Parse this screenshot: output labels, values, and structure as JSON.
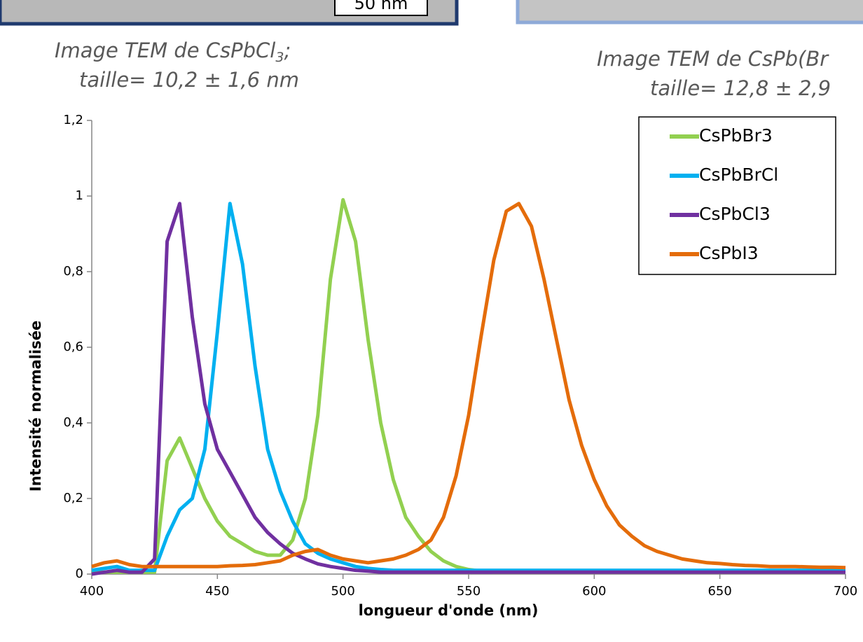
{
  "captions": [
    {
      "line1": "Image TEM de CsPbCl",
      "sub": "3",
      "after": ";",
      "line2": "taille= 10,2 ± 1,6 nm"
    },
    {
      "line1": "Image TEM de CsPb(Br",
      "line2": "taille= 12,8 ± 2,9"
    }
  ],
  "scale_bar": "50 nm",
  "chart_data": {
    "type": "line",
    "xlabel": "longueur d'onde (nm)",
    "ylabel": "Intensité normalisée",
    "x": [
      400,
      405,
      410,
      415,
      420,
      425,
      430,
      435,
      440,
      445,
      450,
      455,
      460,
      465,
      470,
      475,
      480,
      485,
      490,
      495,
      500,
      505,
      510,
      515,
      520,
      525,
      530,
      535,
      540,
      545,
      550,
      555,
      560,
      565,
      570,
      575,
      580,
      585,
      590,
      595,
      600,
      605,
      610,
      615,
      620,
      625,
      630,
      635,
      640,
      645,
      650,
      655,
      660,
      665,
      670,
      675,
      680,
      685,
      690,
      695,
      700
    ],
    "series": [
      {
        "name": "CsPbBr3",
        "color": "#92d050",
        "values": [
          0.005,
          0.005,
          0.005,
          0.005,
          0.005,
          0.005,
          0.3,
          0.36,
          0.28,
          0.2,
          0.14,
          0.1,
          0.08,
          0.06,
          0.05,
          0.05,
          0.09,
          0.2,
          0.42,
          0.78,
          0.99,
          0.88,
          0.62,
          0.4,
          0.25,
          0.15,
          0.1,
          0.06,
          0.035,
          0.02,
          0.012,
          0.008,
          0.005,
          0.005,
          0.005,
          0.005,
          0.005,
          0.005,
          0.005,
          0.005,
          0.005,
          0.005,
          0.005,
          0.005,
          0.005,
          0.005,
          0.005,
          0.005,
          0.005,
          0.005,
          0.005,
          0.005,
          0.005,
          0.005,
          0.005,
          0.005,
          0.005,
          0.005,
          0.005,
          0.005,
          0.005
        ]
      },
      {
        "name": "CsPbBrCl",
        "color": "#00b0f0",
        "values": [
          0.01,
          0.015,
          0.02,
          0.01,
          0.01,
          0.01,
          0.1,
          0.17,
          0.2,
          0.33,
          0.64,
          0.98,
          0.82,
          0.55,
          0.33,
          0.22,
          0.14,
          0.08,
          0.055,
          0.04,
          0.03,
          0.02,
          0.015,
          0.012,
          0.01,
          0.01,
          0.01,
          0.01,
          0.01,
          0.01,
          0.01,
          0.01,
          0.01,
          0.01,
          0.01,
          0.01,
          0.01,
          0.01,
          0.01,
          0.01,
          0.01,
          0.01,
          0.01,
          0.01,
          0.01,
          0.01,
          0.01,
          0.01,
          0.01,
          0.01,
          0.01,
          0.01,
          0.01,
          0.01,
          0.01,
          0.01,
          0.01,
          0.01,
          0.01,
          0.01,
          0.01
        ]
      },
      {
        "name": "CsPbCl3",
        "color": "#7030a0",
        "values": [
          0,
          0.005,
          0.01,
          0.005,
          0.005,
          0.04,
          0.88,
          0.98,
          0.68,
          0.45,
          0.33,
          0.27,
          0.21,
          0.15,
          0.11,
          0.08,
          0.055,
          0.04,
          0.027,
          0.02,
          0.015,
          0.01,
          0.008,
          0.005,
          0.005,
          0.005,
          0.005,
          0.005,
          0.005,
          0.005,
          0.005,
          0.005,
          0.005,
          0.005,
          0.005,
          0.005,
          0.005,
          0.005,
          0.005,
          0.005,
          0.005,
          0.005,
          0.005,
          0.005,
          0.005,
          0.005,
          0.005,
          0.005,
          0.005,
          0.005,
          0.005,
          0.005,
          0.005,
          0.005,
          0.005,
          0.005,
          0.005,
          0.005,
          0.005,
          0.005,
          0.005
        ]
      },
      {
        "name": "CsPbI3",
        "color": "#e46c0a",
        "values": [
          0.02,
          0.03,
          0.035,
          0.025,
          0.02,
          0.02,
          0.02,
          0.02,
          0.02,
          0.02,
          0.02,
          0.022,
          0.023,
          0.025,
          0.03,
          0.035,
          0.05,
          0.06,
          0.065,
          0.05,
          0.04,
          0.035,
          0.03,
          0.035,
          0.04,
          0.05,
          0.065,
          0.09,
          0.15,
          0.26,
          0.42,
          0.63,
          0.83,
          0.96,
          0.98,
          0.92,
          0.78,
          0.62,
          0.46,
          0.34,
          0.25,
          0.18,
          0.13,
          0.1,
          0.075,
          0.06,
          0.05,
          0.04,
          0.035,
          0.03,
          0.028,
          0.025,
          0.023,
          0.022,
          0.02,
          0.02,
          0.02,
          0.019,
          0.018,
          0.018,
          0.017
        ]
      }
    ],
    "xlim": [
      400,
      700
    ],
    "xticks": [
      400,
      450,
      500,
      550,
      600,
      650,
      700
    ],
    "ylim": [
      0,
      1.2
    ],
    "yticks": [
      0,
      {
        "value": 0.2,
        "label": "0,2"
      },
      {
        "value": 0.4,
        "label": "0,4"
      },
      {
        "value": 0.6,
        "label": "0,6"
      },
      {
        "value": 0.8,
        "label": "0,8"
      },
      1,
      {
        "value": 1.2,
        "label": "1,2"
      }
    ],
    "legend": "upper right"
  }
}
